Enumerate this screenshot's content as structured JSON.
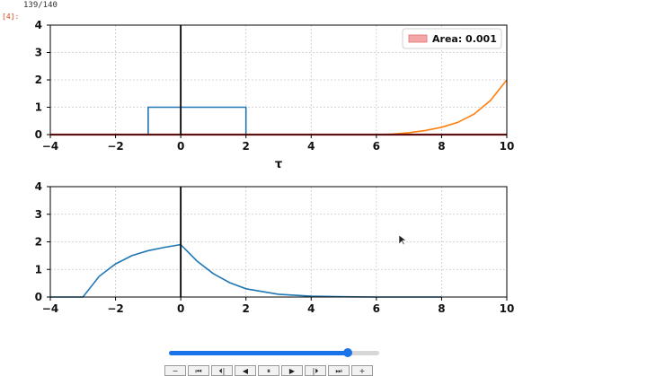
{
  "header": {
    "frame_counter": "139/140",
    "cell_prompt": "[4]:"
  },
  "colors": {
    "blue": "#1f77b4",
    "orange": "#ff7f0e",
    "red": "#b22222",
    "area_fill": "#f4a6a6",
    "slider_accent": "#1a73e8"
  },
  "chart_data": [
    {
      "type": "line",
      "title": "",
      "xlabel": "τ",
      "ylabel": "",
      "xlim": [
        -4,
        10
      ],
      "ylim": [
        0,
        4
      ],
      "xticks": [
        "−4",
        "−2",
        "0",
        "2",
        "4",
        "6",
        "8",
        "10"
      ],
      "yticks": [
        "0",
        "1",
        "2",
        "3",
        "4"
      ],
      "grid": true,
      "legend": {
        "placement": "top-right",
        "entries": [
          {
            "label": "Area: 0.001",
            "kind": "area"
          }
        ]
      },
      "vertical_line_x": 0,
      "series": [
        {
          "role": "rectangular pulse",
          "color_key": "blue",
          "x": [
            -4,
            -1,
            -1,
            2,
            2,
            10
          ],
          "y": [
            0,
            0,
            1,
            1,
            0,
            0
          ]
        },
        {
          "role": "shifted decaying exponential",
          "color_key": "orange",
          "x": [
            -4,
            6,
            6.5,
            7,
            7.5,
            8,
            8.5,
            9,
            9.5,
            10
          ],
          "y": [
            0,
            0,
            0.02,
            0.07,
            0.15,
            0.27,
            0.45,
            0.75,
            1.25,
            2.0
          ]
        },
        {
          "role": "product (overlap)",
          "color_key": "red",
          "x": [
            -4,
            10
          ],
          "y": [
            0,
            0
          ]
        }
      ]
    },
    {
      "type": "line",
      "title": "",
      "xlabel": "",
      "ylabel": "",
      "xlim": [
        -4,
        10
      ],
      "ylim": [
        0,
        4
      ],
      "xticks": [
        "−4",
        "−2",
        "0",
        "2",
        "4",
        "6",
        "8",
        "10"
      ],
      "yticks": [
        "0",
        "1",
        "2",
        "3",
        "4"
      ],
      "grid": true,
      "vertical_line_x": 0,
      "series": [
        {
          "role": "convolution result",
          "color_key": "blue",
          "x": [
            -4,
            -3,
            -2.5,
            -2,
            -1.5,
            -1,
            -0.5,
            0,
            0.5,
            1,
            1.5,
            2,
            3,
            4,
            5,
            6,
            7,
            8
          ],
          "y": [
            0,
            0,
            0.75,
            1.2,
            1.5,
            1.68,
            1.8,
            1.9,
            1.3,
            0.85,
            0.52,
            0.3,
            0.1,
            0.03,
            0.01,
            0,
            0,
            0
          ]
        }
      ]
    }
  ],
  "player": {
    "progress": 0.85,
    "buttons": [
      {
        "name": "minus-button",
        "glyph": "−"
      },
      {
        "name": "first-frame-button",
        "glyph": "⏮"
      },
      {
        "name": "step-back-button",
        "glyph": "⏴|"
      },
      {
        "name": "play-reverse-button",
        "glyph": "◀"
      },
      {
        "name": "pause-button",
        "glyph": "⏸"
      },
      {
        "name": "play-button",
        "glyph": "▶"
      },
      {
        "name": "step-forward-button",
        "glyph": "|⏵"
      },
      {
        "name": "last-frame-button",
        "glyph": "⏭"
      },
      {
        "name": "plus-button",
        "glyph": "+"
      }
    ]
  }
}
